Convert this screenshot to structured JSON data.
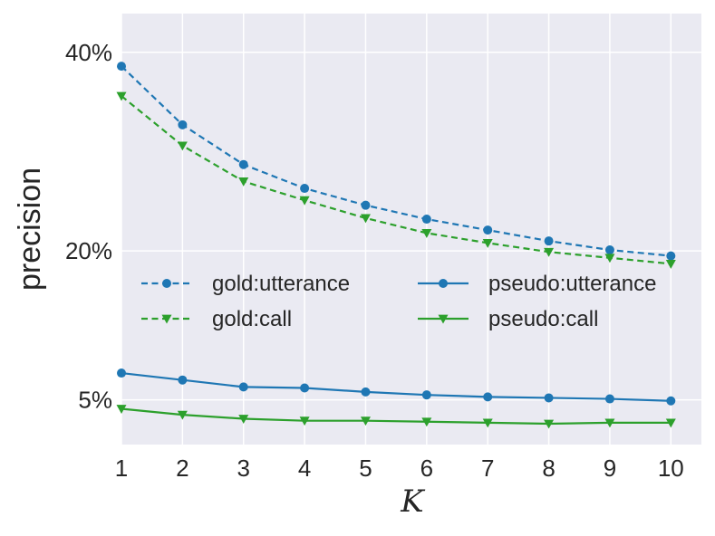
{
  "chart_data": {
    "type": "line",
    "title": "",
    "xlabel": "K",
    "ylabel": "precision",
    "x": [
      1,
      2,
      3,
      4,
      5,
      6,
      7,
      8,
      9,
      10
    ],
    "xticks": [
      "1",
      "2",
      "3",
      "4",
      "5",
      "6",
      "7",
      "8",
      "9",
      "10"
    ],
    "yticks": [
      {
        "value": 40,
        "label": "40%"
      },
      {
        "value": 20,
        "label": "20%"
      },
      {
        "value": 5,
        "label": "5%"
      }
    ],
    "xlim": [
      1,
      10.5
    ],
    "ylim": [
      0.5,
      43.9
    ],
    "grid": true,
    "legend_position": "center, two columns",
    "series": [
      {
        "name": "gold:utterance",
        "color": "#1f77b4",
        "linestyle": "dashed",
        "marker": "circle",
        "values": [
          38.6,
          32.7,
          28.7,
          26.3,
          24.6,
          23.2,
          22.1,
          21.0,
          20.1,
          19.5
        ]
      },
      {
        "name": "gold:call",
        "color": "#2ca02c",
        "linestyle": "dashed",
        "marker": "triangle-down",
        "values": [
          35.6,
          30.6,
          27.0,
          25.1,
          23.3,
          21.8,
          20.8,
          19.9,
          19.3,
          18.7
        ]
      },
      {
        "name": "pseudo:utterance",
        "color": "#1f77b4",
        "linestyle": "solid",
        "marker": "circle",
        "values": [
          7.7,
          7.0,
          6.3,
          6.2,
          5.8,
          5.5,
          5.3,
          5.2,
          5.1,
          4.9
        ]
      },
      {
        "name": "pseudo:call",
        "color": "#2ca02c",
        "linestyle": "solid",
        "marker": "triangle-down",
        "values": [
          4.1,
          3.5,
          3.1,
          2.9,
          2.9,
          2.8,
          2.7,
          2.6,
          2.7,
          2.7
        ]
      }
    ]
  }
}
